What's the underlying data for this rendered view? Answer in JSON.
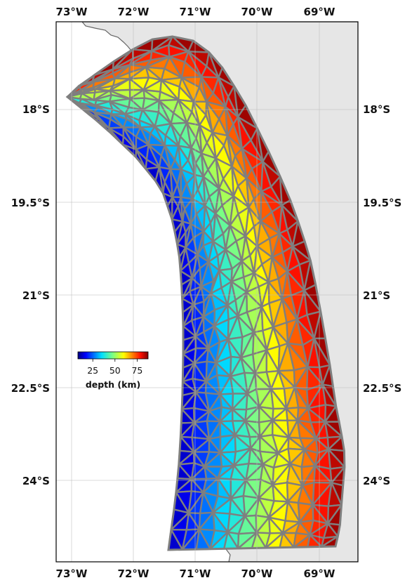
{
  "map": {
    "lon_labels": [
      "73°W",
      "72°W",
      "71°W",
      "70°W",
      "69°W"
    ],
    "lat_labels": [
      "18°S",
      "19.5°S",
      "21°S",
      "22.5°S",
      "24°S"
    ],
    "lon_values": [
      -73,
      -72,
      -71,
      -70,
      -69
    ],
    "lat_values": [
      -18,
      -19.5,
      -21,
      -22.5,
      -24
    ],
    "extent": {
      "lon": [
        -73.25,
        -68.4
      ],
      "lat": [
        -16.85,
        -25.55
      ]
    },
    "land_color": "#e6e6e6",
    "ocean_color": "#ffffff",
    "mesh_edge_color": "#7f7f7f",
    "colormap": "jet",
    "depth_range_km": [
      5,
      90
    ]
  },
  "colorbar": {
    "ticks": [
      "25",
      "50",
      "75"
    ],
    "tick_values": [
      25,
      50,
      75
    ],
    "label": "depth (km)"
  }
}
